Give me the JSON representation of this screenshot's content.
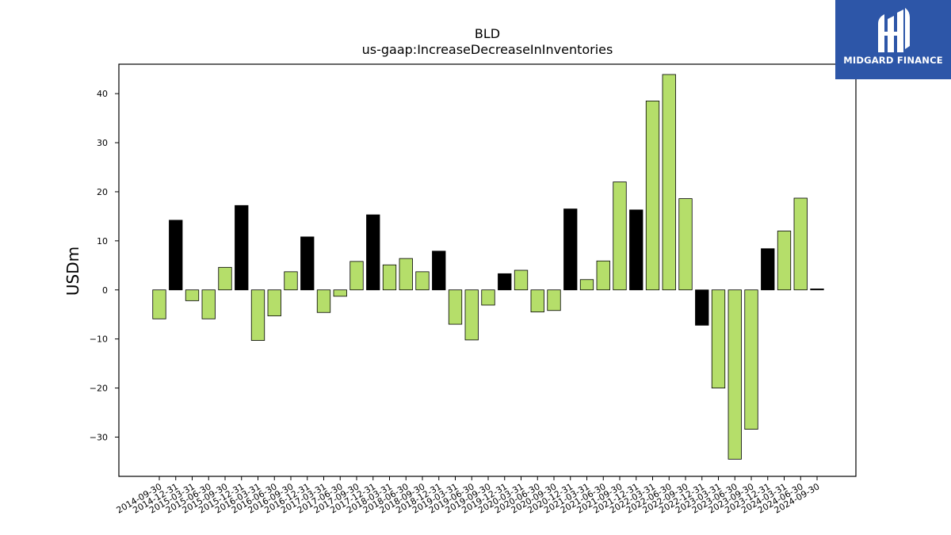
{
  "chart_data": {
    "type": "bar",
    "title": "BLD",
    "subtitle": "us-gaap:IncreaseDecreaseInInventories",
    "xlabel": "",
    "ylabel": "USDm",
    "ylim": [
      -38,
      46
    ],
    "yticks": [
      -30,
      -20,
      -10,
      0,
      10,
      20,
      30,
      40
    ],
    "ytick_labels": [
      "−30",
      "−20",
      "−10",
      "0",
      "10",
      "20",
      "30",
      "40"
    ],
    "grid": false,
    "colors": {
      "quarterly": "#b5de6a",
      "fiscal_year_end": "#000000"
    },
    "categories": [
      "2014-09-30",
      "2014-12-31",
      "2015-03-31",
      "2015-06-30",
      "2015-09-30",
      "2015-12-31",
      "2016-03-31",
      "2016-06-30",
      "2016-09-30",
      "2016-12-31",
      "2017-03-31",
      "2017-06-30",
      "2017-09-30",
      "2017-12-31",
      "2018-03-31",
      "2018-06-30",
      "2018-09-30",
      "2018-12-31",
      "2019-03-31",
      "2019-06-30",
      "2019-09-30",
      "2019-12-31",
      "2020-03-31",
      "2020-06-30",
      "2020-09-30",
      "2020-12-31",
      "2021-03-31",
      "2021-06-30",
      "2021-09-30",
      "2021-12-31",
      "2022-03-31",
      "2022-06-30",
      "2022-09-30",
      "2022-12-31",
      "2023-03-31",
      "2023-06-30",
      "2023-09-30",
      "2023-12-31",
      "2024-03-31",
      "2024-06-30",
      "2024-09-30"
    ],
    "values": [
      -5.9,
      14.2,
      -2.2,
      -5.9,
      4.6,
      17.2,
      -10.3,
      -5.3,
      3.7,
      10.8,
      -4.6,
      -1.3,
      5.8,
      15.3,
      5.1,
      6.4,
      3.7,
      7.9,
      -7.0,
      -10.2,
      -3.1,
      3.3,
      4.0,
      -4.5,
      -4.2,
      16.5,
      2.1,
      5.9,
      22.0,
      16.3,
      38.5,
      43.9,
      18.6,
      -7.2,
      -20.0,
      -34.5,
      -28.4,
      8.4,
      12.0,
      18.7,
      0.2
    ],
    "bar_colors": [
      "quarterly",
      "fiscal_year_end",
      "quarterly",
      "quarterly",
      "quarterly",
      "fiscal_year_end",
      "quarterly",
      "quarterly",
      "quarterly",
      "fiscal_year_end",
      "quarterly",
      "quarterly",
      "quarterly",
      "fiscal_year_end",
      "quarterly",
      "quarterly",
      "quarterly",
      "fiscal_year_end",
      "quarterly",
      "quarterly",
      "quarterly",
      "fiscal_year_end",
      "quarterly",
      "quarterly",
      "quarterly",
      "fiscal_year_end",
      "quarterly",
      "quarterly",
      "quarterly",
      "fiscal_year_end",
      "quarterly",
      "quarterly",
      "quarterly",
      "fiscal_year_end",
      "quarterly",
      "quarterly",
      "quarterly",
      "fiscal_year_end",
      "quarterly",
      "quarterly",
      "fiscal_year_end"
    ]
  },
  "logo": {
    "text": "MIDGARD FINANCE",
    "background": "#2d56a8"
  }
}
